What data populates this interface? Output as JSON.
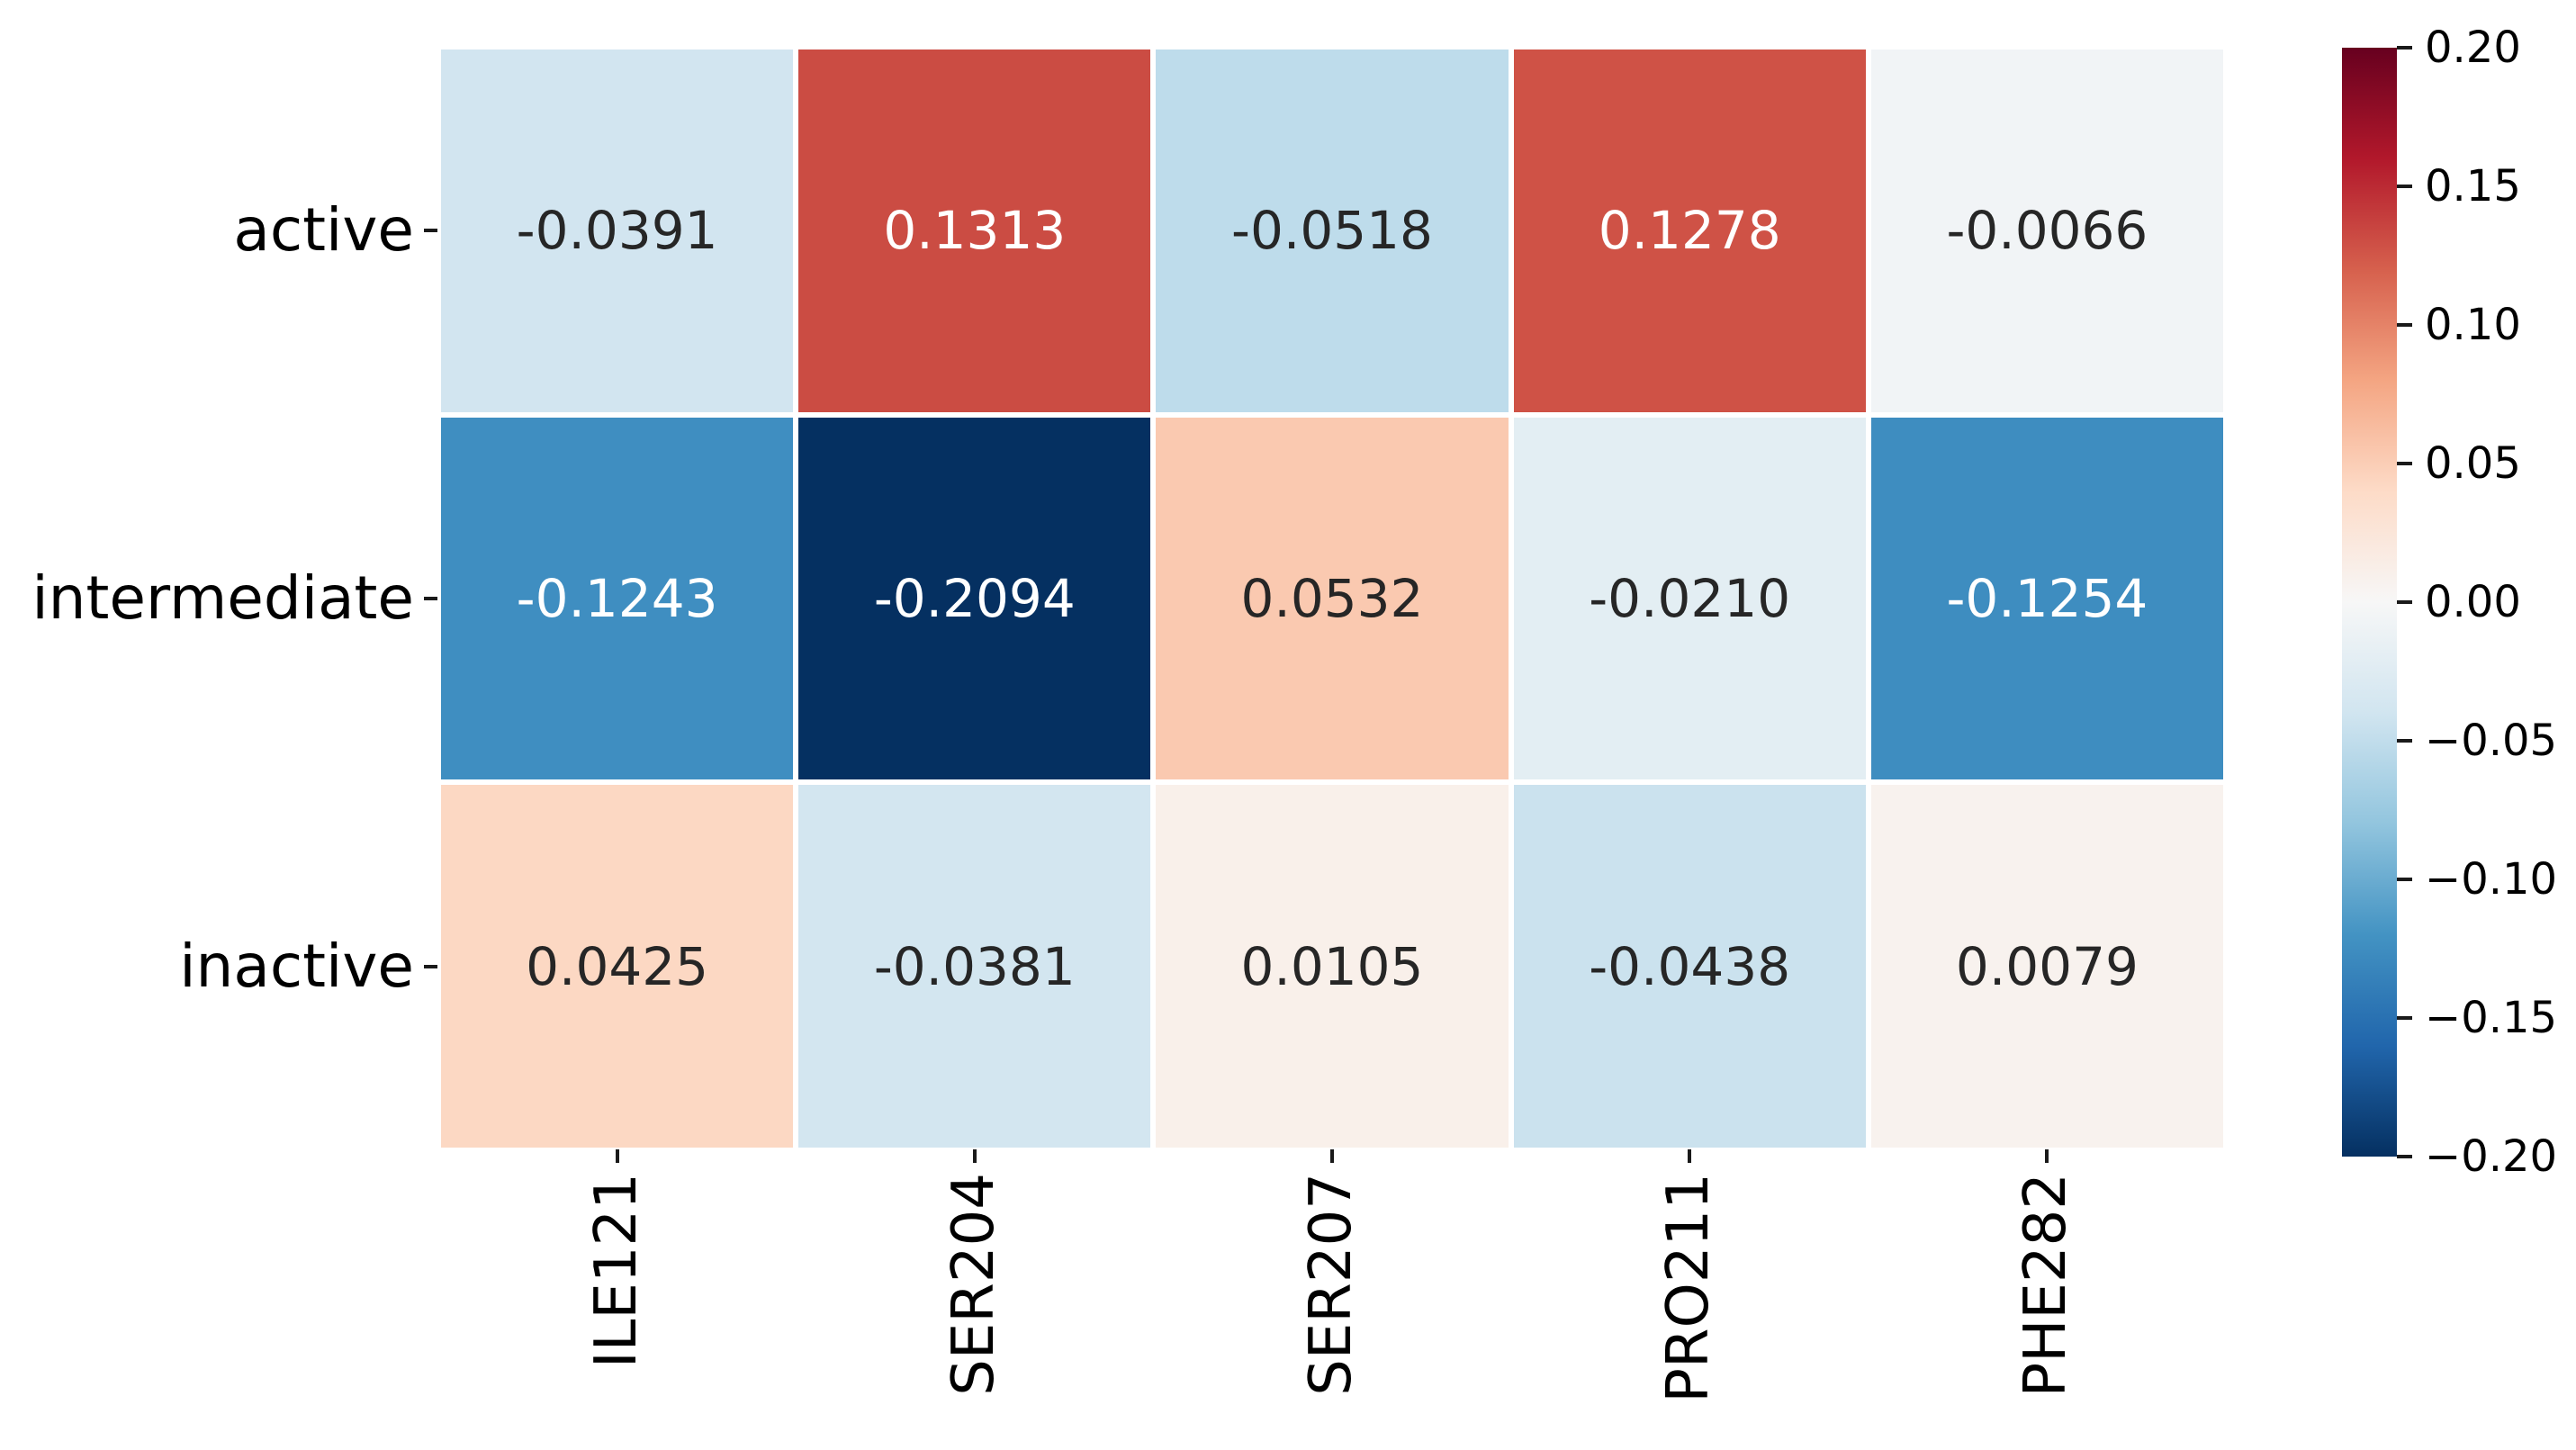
{
  "figure": {
    "background": "#ffffff"
  },
  "chart_data": {
    "type": "heatmap",
    "rows": [
      "active",
      "intermediate",
      "inactive"
    ],
    "columns": [
      "ILE121",
      "SER204",
      "SER207",
      "PRO211",
      "PHE282"
    ],
    "values": [
      [
        -0.0391,
        0.1313,
        -0.0518,
        0.1278,
        -0.0066
      ],
      [
        -0.1243,
        -0.2094,
        0.0532,
        -0.021,
        -0.1254
      ],
      [
        0.0425,
        -0.0381,
        0.0105,
        -0.0438,
        0.0079
      ]
    ],
    "cell_labels": [
      [
        "-0.0391",
        "0.1313",
        "-0.0518",
        "0.1278",
        "-0.0066"
      ],
      [
        "-0.1243",
        "-0.2094",
        "0.0532",
        "-0.0210",
        "-0.1254"
      ],
      [
        "0.0425",
        "-0.0381",
        "0.0105",
        "-0.0438",
        "0.0079"
      ]
    ],
    "cell_colors": [
      [
        "#d2e5f0",
        "#cb4c43",
        "#bedceb",
        "#cf5246",
        "#f1f4f6"
      ],
      [
        "#3f8ec1",
        "#053061",
        "#fac9b0",
        "#e3eef3",
        "#3e8dc0"
      ],
      [
        "#fcd8c3",
        "#d3e6f0",
        "#f9f0ea",
        "#cbe2ee",
        "#f8f2ee"
      ]
    ],
    "cell_text_colors": [
      [
        "#262626",
        "#ffffff",
        "#262626",
        "#ffffff",
        "#262626"
      ],
      [
        "#ffffff",
        "#ffffff",
        "#262626",
        "#262626",
        "#ffffff"
      ],
      [
        "#262626",
        "#262626",
        "#262626",
        "#262626",
        "#262626"
      ]
    ],
    "colormap": {
      "name": "RdBu_r",
      "gradient_top_to_bottom": [
        "#67001f",
        "#b2182b",
        "#d6604d",
        "#f4a582",
        "#fddbc7",
        "#f7f7f7",
        "#d1e5f0",
        "#92c5de",
        "#4393c3",
        "#2166ac",
        "#053061"
      ]
    },
    "colorbar": {
      "vmin": -0.2,
      "vmax": 0.2,
      "tick_labels": [
        "0.20",
        "0.15",
        "0.10",
        "0.05",
        "0.00",
        "−0.05",
        "−0.10",
        "−0.15",
        "−0.20"
      ]
    },
    "title": "",
    "xlabel": "",
    "ylabel": "",
    "grid": false,
    "legend_position": "none"
  }
}
